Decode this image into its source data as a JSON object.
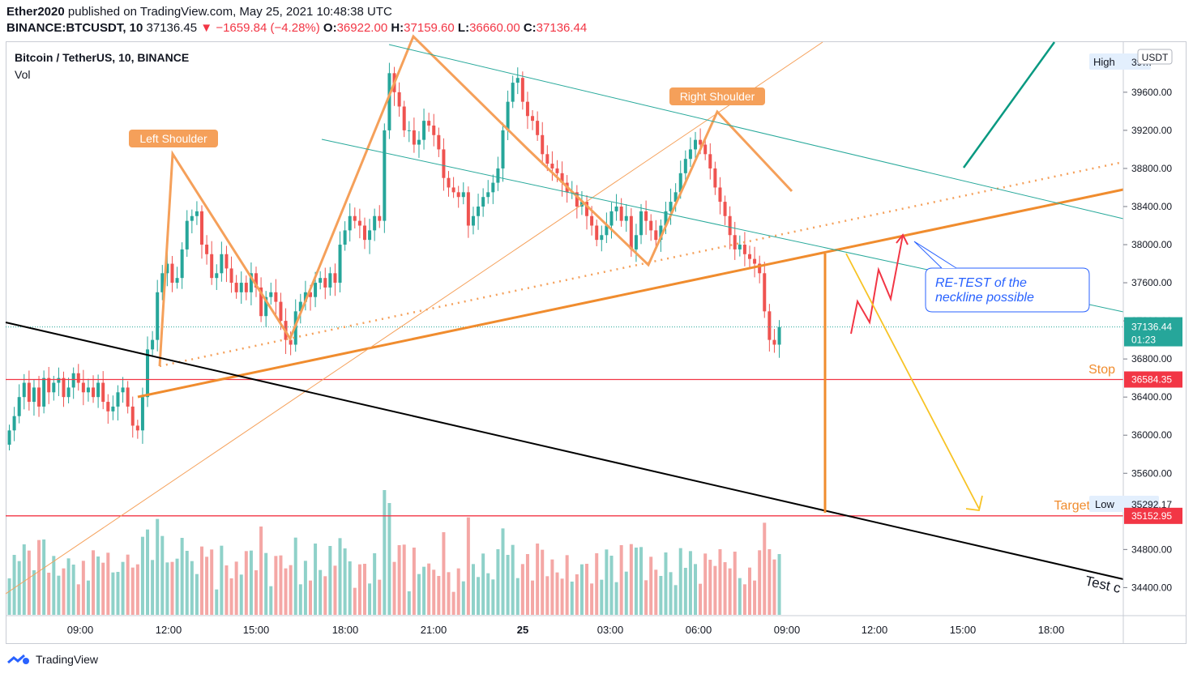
{
  "header": {
    "author": "Ether2020",
    "published_text": " published on TradingView.com, May 25, 2021 10:48:38 UTC",
    "symbol": "BINANCE:BTCUSDT, 10",
    "last": "37136.45",
    "change": "−1659.84 (−4.28%)",
    "o_label": "O:",
    "o_value": "36922.00",
    "h_label": "H:",
    "h_value": "37159.60",
    "l_label": "L:",
    "l_value": "36660.00",
    "c_label": "C:",
    "c_value": "37136.44"
  },
  "legend": {
    "title": "Bitcoin / TetherUS, 10, BINANCE",
    "vol": "Vol"
  },
  "footer": {
    "brand": "TradingView"
  },
  "colors": {
    "up": "#26a69a",
    "down": "#ef5350",
    "orange": "#f7931a",
    "annotation": "#f5a05a",
    "black": "#000000",
    "red_level": "#f23645",
    "teal": "#089981",
    "yellow": "#f7c325"
  },
  "chart_data": {
    "type": "candlestick",
    "currency": "USDT",
    "y_ticks": [
      "39600.00",
      "39200.00",
      "38800.00",
      "38400.00",
      "38000.00",
      "37600.00",
      "37200.00",
      "36800.00",
      "36400.00",
      "36000.00",
      "35600.00",
      "34800.00",
      "34400.00"
    ],
    "x_ticks": [
      "09:00",
      "12:00",
      "15:00",
      "18:00",
      "21:00",
      "25",
      "03:00",
      "06:00",
      "09:00",
      "12:00",
      "15:00",
      "18:00"
    ],
    "price_labels": {
      "high_label": "High",
      "high_value": "39…",
      "current": "37136.44",
      "countdown": "01:23",
      "stop": "36584.35",
      "low_label": "Low",
      "low_value": "35292.17",
      "target": "35152.95"
    },
    "annotations": {
      "left_shoulder": "Left Shoulder",
      "right_shoulder": "Right Shoulder",
      "retest_line1": "RE-TEST of the",
      "retest_line2": "neckline possible",
      "stop": "Stop",
      "target": "Target",
      "test": "Test c"
    },
    "close": [
      36050,
      36200,
      36400,
      36550,
      36350,
      36500,
      36300,
      36600,
      36450,
      36550,
      36600,
      36400,
      36500,
      36650,
      36550,
      36450,
      36500,
      36400,
      36550,
      36350,
      36250,
      36300,
      36450,
      36500,
      36300,
      36100,
      36050,
      36400,
      36900,
      37000,
      37500,
      37700,
      37800,
      37600,
      37650,
      37950,
      38250,
      38300,
      38350,
      38000,
      37900,
      37650,
      37700,
      37900,
      37750,
      37600,
      37500,
      37600,
      37500,
      37700,
      37550,
      37250,
      37450,
      37500,
      37400,
      37200,
      37000,
      36950,
      37300,
      37400,
      37500,
      37450,
      37600,
      37650,
      37550,
      37700,
      37600,
      38000,
      38150,
      38300,
      38250,
      38200,
      38050,
      38150,
      38300,
      38250,
      39200,
      39800,
      39600,
      39450,
      39200,
      39200,
      39050,
      39100,
      39300,
      39250,
      39150,
      39000,
      38700,
      38600,
      38550,
      38500,
      38550,
      38200,
      38300,
      38400,
      38500,
      38550,
      38650,
      38800,
      39200,
      39500,
      39700,
      39750,
      39500,
      39350,
      39300,
      39150,
      38950,
      38850,
      38800,
      38750,
      38650,
      38550,
      38550,
      38400,
      38450,
      38300,
      38200,
      38050,
      38100,
      38200,
      38350,
      38400,
      38250,
      38300,
      37950,
      38100,
      38350,
      38250,
      38150,
      38050,
      38200,
      38350,
      38450,
      38550,
      38750,
      38900,
      39000,
      39100,
      39050,
      38950,
      38800,
      38600,
      38450,
      38300,
      38100,
      37950,
      38000,
      37900,
      37850,
      37800,
      37700,
      37300,
      37000,
      36950,
      37136
    ]
  }
}
